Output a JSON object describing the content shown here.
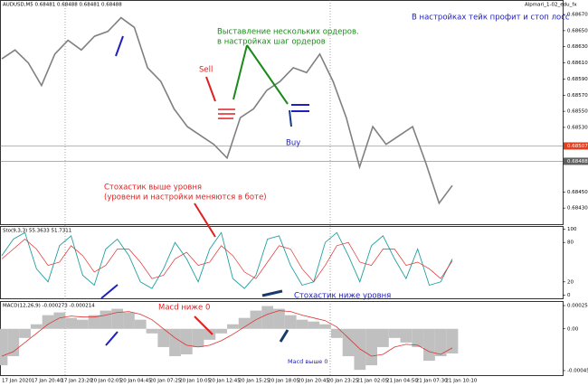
{
  "symbol_info": "AUDUSD,M5  0.68481 0.68488 0.68481 0.68488",
  "robot_label": "Alpmari_1-02_edu_fx",
  "annotations": {
    "settings_tp_sl": "В настройках тейк профит и стоп лосс",
    "multiple_orders_1": "Выставление нескольких ордеров.",
    "multiple_orders_2": "в настройках шаг ордеров",
    "sell": "Sell",
    "buy": "Buy",
    "stoch_above_1": "Стохастик выше уровня",
    "stoch_above_2": "(уровени и настройки меняются в боте)",
    "stoch_below": "Стохастик ниже уровня",
    "macd_below": "Macd ниже 0",
    "macd_above": "Macd выше 0"
  },
  "x_axis_labels": [
    "17 Jan 2020",
    "17 Jan 20:40",
    "17 Jan 23:20",
    "20 Jan 02:05",
    "20 Jan 04:45",
    "20 Jan 07:25",
    "20 Jan 10:05",
    "20 Jan 12:45",
    "20 Jan 15:25",
    "20 Jan 18:05",
    "20 Jan 20:45",
    "20 Jan 23:25",
    "21 Jan 02:05",
    "21 Jan 04:50",
    "21 Jan 07:30",
    "21 Jan 10:10"
  ],
  "chart_data": [
    {
      "type": "line",
      "title": "AUDUSD,M5",
      "color": "#808080",
      "values": [
        0.68615,
        0.68626,
        0.6861,
        0.68582,
        0.68621,
        0.68638,
        0.68626,
        0.68643,
        0.68649,
        0.68666,
        0.68654,
        0.68604,
        0.68587,
        0.68553,
        0.68531,
        0.6852,
        0.68509,
        0.68492,
        0.68542,
        0.68553,
        0.68576,
        0.68587,
        0.68604,
        0.68598,
        0.68621,
        0.68587,
        0.68542,
        0.68481,
        0.68531,
        0.68509,
        0.6852,
        0.68531,
        0.68486,
        0.68436,
        0.68458
      ],
      "ylim": [
        0.6841,
        0.68688
      ],
      "yticks": [
        {
          "value": 0.6867,
          "label": "0.68670"
        },
        {
          "value": 0.6865,
          "label": "0.68650"
        },
        {
          "value": 0.6863,
          "label": "0.68630"
        },
        {
          "value": 0.6861,
          "label": "0.68610"
        },
        {
          "value": 0.6859,
          "label": "0.68590"
        },
        {
          "value": 0.6857,
          "label": "0.68570"
        },
        {
          "value": 0.6855,
          "label": "0.68550"
        },
        {
          "value": 0.6853,
          "label": "0.68530"
        },
        {
          "value": 0.6845,
          "label": "0.68450"
        },
        {
          "value": 0.6843,
          "label": "0.68430"
        }
      ],
      "price_levels": [
        {
          "value": 0.68507,
          "label": "0.68507",
          "color": "#e04020"
        },
        {
          "value": 0.68488,
          "label": "0.68488",
          "color": "#606060"
        }
      ]
    },
    {
      "type": "stochastic",
      "title": "Sto(9,3,3) 55.3633 51.7311",
      "color": "#20a0a0",
      "signal_color": "#e03030",
      "values": [
        60,
        85,
        95,
        40,
        20,
        75,
        90,
        30,
        15,
        70,
        85,
        60,
        20,
        10,
        40,
        80,
        55,
        20,
        70,
        95,
        25,
        10,
        30,
        85,
        90,
        45,
        15,
        20,
        80,
        95,
        60,
        20,
        75,
        90,
        55,
        25,
        70,
        15,
        20,
        55
      ],
      "signal_values": [
        55,
        70,
        85,
        70,
        45,
        50,
        75,
        60,
        35,
        45,
        70,
        70,
        50,
        25,
        30,
        55,
        65,
        45,
        50,
        75,
        60,
        35,
        25,
        50,
        75,
        70,
        40,
        20,
        45,
        75,
        80,
        50,
        45,
        70,
        70,
        45,
        50,
        40,
        25,
        52
      ],
      "ylim": [
        -5,
        105
      ],
      "yticks": [
        100,
        80,
        20,
        0
      ]
    },
    {
      "type": "macd",
      "title": "MACD(12,26,9) -0.000273 -0.000214",
      "color": "#c0c0c0",
      "line_color": "#e03030",
      "values": [
        -0.0004,
        -0.0003,
        -0.0001,
        5e-05,
        0.00015,
        0.00018,
        0.00012,
        0.0001,
        0.00015,
        0.0002,
        0.00022,
        0.00018,
        0.0001,
        -5e-05,
        -0.0002,
        -0.0003,
        -0.00028,
        -0.0002,
        -0.00012,
        -5e-05,
        5e-05,
        0.00012,
        0.0002,
        0.00025,
        0.00022,
        0.00015,
        0.0001,
        8e-05,
        5e-05,
        -0.0001,
        -0.0003,
        -0.00045,
        -0.0004,
        -0.0002,
        -0.0001,
        -0.00015,
        -0.0002,
        -0.00035,
        -0.0003,
        -0.00027
      ],
      "line_values": [
        -0.0003,
        -0.00025,
        -0.00015,
        -5e-05,
        5e-05,
        0.00012,
        0.00014,
        0.00013,
        0.00013,
        0.00015,
        0.00018,
        0.00019,
        0.00016,
        0.0001,
        0,
        -0.0001,
        -0.00018,
        -0.0002,
        -0.00018,
        -0.00013,
        -6e-05,
        2e-05,
        0.0001,
        0.00016,
        0.0002,
        0.00019,
        0.00015,
        0.00012,
        9e-05,
        2e-05,
        -0.0001,
        -0.00022,
        -0.0003,
        -0.00028,
        -0.0002,
        -0.00017,
        -0.00018,
        -0.00025,
        -0.00028,
        -0.00021
      ],
      "ylim": [
        -0.000508,
        0.000305
      ],
      "yticks": [
        0.000255,
        {
          "value": 0,
          "label": "0.00"
        },
        -0.000458
      ]
    }
  ]
}
